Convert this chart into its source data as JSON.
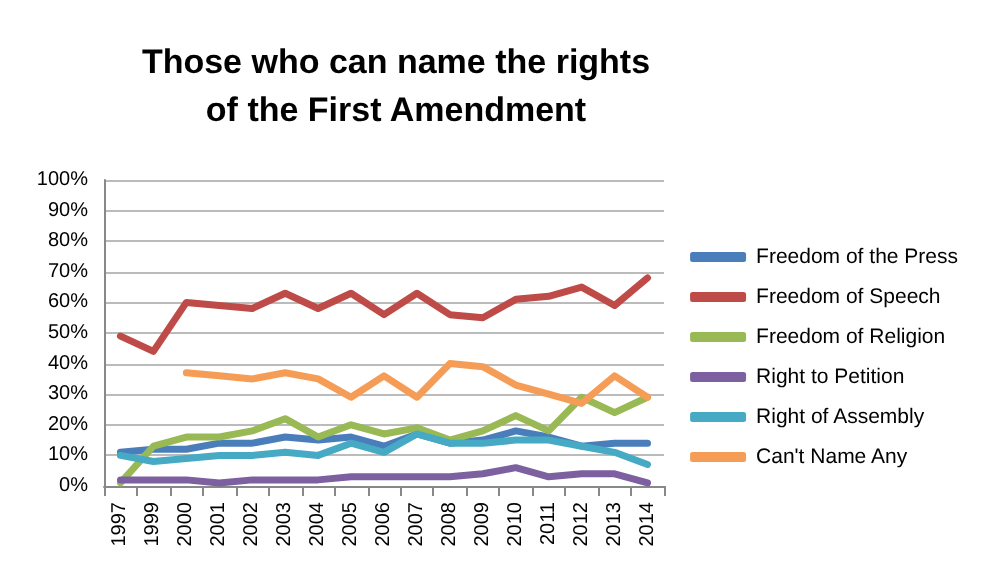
{
  "chart_data": {
    "type": "line",
    "title": "Those who can name the rights\nof the First Amendment",
    "categories": [
      "1997",
      "1999",
      "2000",
      "2001",
      "2002",
      "2003",
      "2004",
      "2005",
      "2006",
      "2007",
      "2008",
      "2009",
      "2010",
      "2011",
      "2012",
      "2013",
      "2014"
    ],
    "series": [
      {
        "name": "Freedom of the Press",
        "color": "#4a7ebb",
        "values": [
          11,
          12,
          12,
          14,
          14,
          16,
          15,
          16,
          13,
          17,
          14,
          15,
          18,
          16,
          13,
          14,
          14
        ]
      },
      {
        "name": "Freedom of Speech",
        "color": "#be4b48",
        "values": [
          49,
          44,
          60,
          59,
          58,
          63,
          58,
          63,
          56,
          63,
          56,
          55,
          61,
          62,
          65,
          59,
          68
        ]
      },
      {
        "name": "Freedom of Religion",
        "color": "#98b954",
        "values": [
          1,
          13,
          16,
          16,
          18,
          22,
          16,
          20,
          17,
          19,
          15,
          18,
          23,
          18,
          29,
          24,
          29
        ]
      },
      {
        "name": "Right to Petition",
        "color": "#7d60a0",
        "values": [
          2,
          2,
          2,
          1,
          2,
          2,
          2,
          3,
          3,
          3,
          3,
          4,
          6,
          3,
          4,
          4,
          1
        ]
      },
      {
        "name": "Right of Assembly",
        "color": "#46aac5",
        "values": [
          10,
          8,
          9,
          10,
          10,
          11,
          10,
          14,
          11,
          17,
          14,
          14,
          15,
          15,
          13,
          11,
          7
        ]
      },
      {
        "name": "Can't Name Any",
        "color": "#f59d56",
        "values": [
          null,
          null,
          37,
          36,
          35,
          37,
          35,
          29,
          36,
          29,
          40,
          39,
          33,
          30,
          27,
          36,
          29
        ]
      }
    ],
    "ylim": [
      0,
      100
    ],
    "yticks": [
      {
        "value": 0,
        "label": "0%"
      },
      {
        "value": 10,
        "label": "10%"
      },
      {
        "value": 20,
        "label": "20%"
      },
      {
        "value": 30,
        "label": "30%"
      },
      {
        "value": 40,
        "label": "40%"
      },
      {
        "value": 50,
        "label": "50%"
      },
      {
        "value": 60,
        "label": "60%"
      },
      {
        "value": 70,
        "label": "70%"
      },
      {
        "value": 80,
        "label": "80%"
      },
      {
        "value": 90,
        "label": "90%"
      },
      {
        "value": 100,
        "label": "100%"
      }
    ],
    "grid": "y",
    "legend": "right",
    "marker": "none",
    "line_style": "solid"
  }
}
